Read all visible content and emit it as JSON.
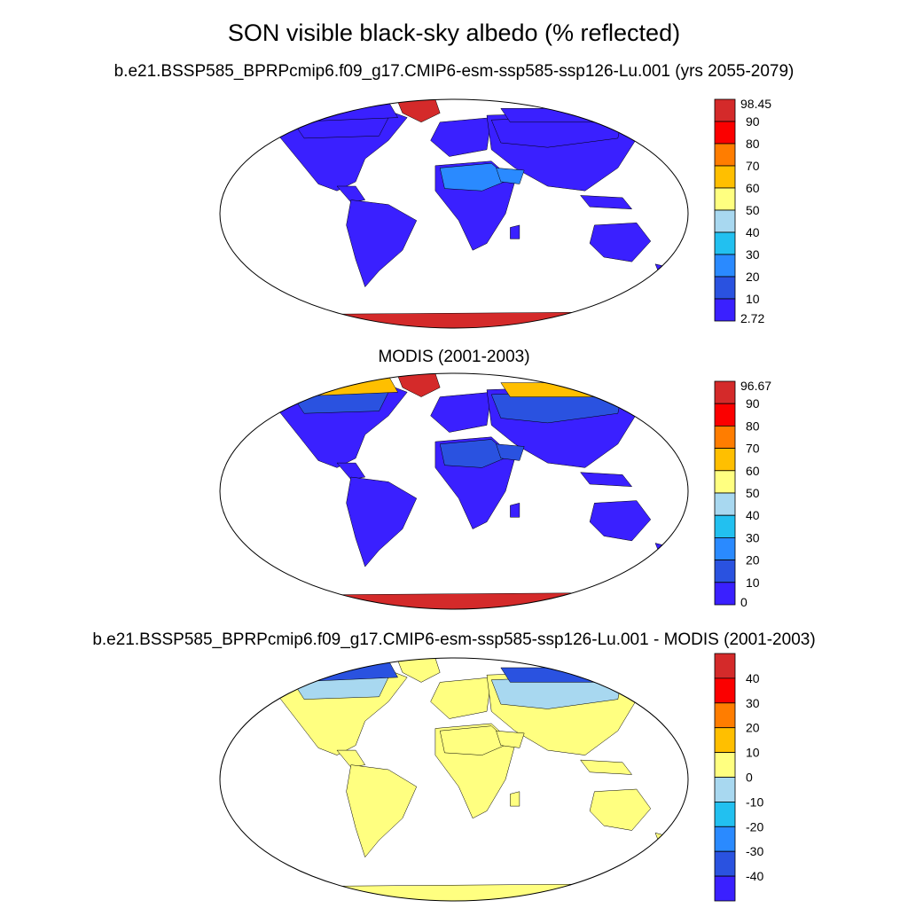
{
  "title": "SON visible black-sky albedo (% reflected)",
  "panels": [
    {
      "subtitle": "b.e21.BSSP585_BPRPcmip6.f09_g17.CMIP6-esm-ssp585-ssp126-Lu.001 (yrs 2055-2079)",
      "colorbar": {
        "labels": [
          "98.45",
          "90",
          "80",
          "70",
          "60",
          "50",
          "40",
          "30",
          "20",
          "10",
          "2.72"
        ],
        "colors": [
          "#d42a2a",
          "#fb0000",
          "#ff7d00",
          "#ffbf00",
          "#ffff80",
          "#a8d8f0",
          "#22c0f0",
          "#2a8aff",
          "#2a52e0",
          "#3a20ff"
        ]
      },
      "regions": {
        "land": "#3a20ff",
        "desert": "#2a8aff",
        "greenland": "#d42a2a",
        "antarctica": "#d42a2a",
        "arctic": "#3a20ff",
        "boreal": "#3a20ff"
      }
    },
    {
      "subtitle": "MODIS (2001-2003)",
      "colorbar": {
        "labels": [
          "96.67",
          "90",
          "80",
          "70",
          "60",
          "50",
          "40",
          "30",
          "20",
          "10",
          "0"
        ],
        "colors": [
          "#d42a2a",
          "#fb0000",
          "#ff7d00",
          "#ffbf00",
          "#ffff80",
          "#a8d8f0",
          "#22c0f0",
          "#2a8aff",
          "#2a52e0",
          "#3a20ff"
        ]
      },
      "regions": {
        "land": "#3a20ff",
        "desert": "#2a52e0",
        "greenland": "#d42a2a",
        "antarctica": "#d42a2a",
        "arctic": "#ffbf00",
        "boreal": "#2a52e0"
      }
    },
    {
      "subtitle": "b.e21.BSSP585_BPRPcmip6.f09_g17.CMIP6-esm-ssp585-ssp126-Lu.001 - MODIS (2001-2003)",
      "colorbar": {
        "labels": [
          "40",
          "30",
          "20",
          "10",
          "0",
          "-10",
          "-20",
          "-30",
          "-40"
        ],
        "colors": [
          "#d42a2a",
          "#fb0000",
          "#ff7d00",
          "#ffbf00",
          "#ffff80",
          "#a8d8f0",
          "#22c0f0",
          "#2a8aff",
          "#2a52e0",
          "#3a20ff"
        ]
      },
      "regions": {
        "land": "#ffff80",
        "desert": "#ffff80",
        "greenland": "#ffff80",
        "antarctica": "#ffff80",
        "arctic": "#2a52e0",
        "boreal": "#a8d8f0"
      }
    }
  ]
}
